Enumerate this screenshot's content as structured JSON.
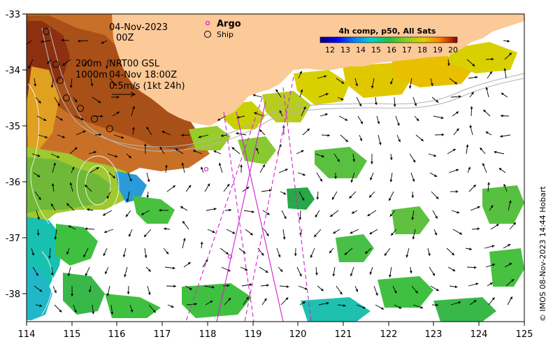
{
  "map": {
    "date_line": "04-Nov-2023",
    "time_line": "00Z",
    "depth_200": "200m",
    "depth_1000": "1000m",
    "product_line": "NRT00 GSL",
    "product_time": "04-Nov 18:00Z",
    "scale_label": "0.5m/s (1kt 24h)",
    "argo_label": "Argo",
    "ship_label": "Ship",
    "colorbar_title": "4h comp, p50, All Sats",
    "colorbar_ticks": [
      "12",
      "13",
      "14",
      "15",
      "16",
      "17",
      "18",
      "19",
      "20"
    ],
    "x_ticks": [
      "114",
      "115",
      "116",
      "117",
      "118",
      "119",
      "120",
      "121",
      "122",
      "123",
      "124",
      "125"
    ],
    "y_ticks": [
      "-33",
      "-34",
      "-35",
      "-36",
      "-37",
      "-38"
    ],
    "credit": "© IMOS 08-Nov-2023 14:44 Hobart",
    "colors": {
      "land": "#fcc998",
      "argo": "#e01ee0",
      "track": "#d21ed2",
      "contour": "#b4b4b4"
    },
    "sst_colormap": [
      "#00007f",
      "#0000ff",
      "#0080ff",
      "#00d0d0",
      "#20c040",
      "#80d020",
      "#e0d000",
      "#ff8000",
      "#c03000",
      "#7f0000"
    ]
  },
  "chart_data": {
    "type": "heatmap",
    "title": "4h comp, p50, All Sats",
    "xlim": [
      114,
      125
    ],
    "ylim": [
      -38.5,
      -33
    ],
    "x_ticks": [
      114,
      115,
      116,
      117,
      118,
      119,
      120,
      121,
      122,
      123,
      124,
      125
    ],
    "y_ticks": [
      -33,
      -34,
      -35,
      -36,
      -37,
      -38
    ],
    "colorbar_range": [
      12,
      20
    ]
  }
}
